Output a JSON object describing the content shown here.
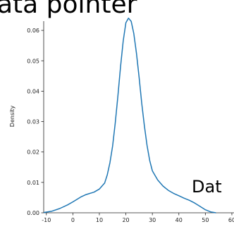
{
  "header_text": "ata pointer",
  "side_text": "Dat",
  "chart_data": {
    "type": "line",
    "ylabel": "Density",
    "color": "#1f77b4",
    "x": [
      -11,
      -8,
      -5,
      -2,
      0,
      3,
      5,
      8,
      10,
      12,
      13,
      14,
      15,
      16,
      17,
      18,
      19,
      20,
      21,
      22,
      23,
      24,
      25,
      26,
      27,
      28,
      29,
      30,
      32,
      34,
      36,
      38,
      40,
      42,
      44,
      46,
      48,
      50,
      52,
      54
    ],
    "values": [
      0.0001,
      0.0005,
      0.0014,
      0.0026,
      0.0036,
      0.0052,
      0.006,
      0.0068,
      0.0078,
      0.0098,
      0.0125,
      0.0165,
      0.022,
      0.0295,
      0.0385,
      0.048,
      0.0565,
      0.0625,
      0.064,
      0.063,
      0.059,
      0.0525,
      0.0445,
      0.036,
      0.0285,
      0.0222,
      0.0172,
      0.0138,
      0.0108,
      0.0088,
      0.0074,
      0.0064,
      0.0056,
      0.0048,
      0.0041,
      0.0032,
      0.0021,
      0.001,
      0.0003,
      0.0
    ],
    "xlim": [
      -11,
      61
    ],
    "ylim": [
      0,
      0.0635
    ],
    "xticks": [
      -10,
      0,
      10,
      20,
      30,
      40,
      50,
      60
    ],
    "yticks": [
      {
        "value": 0,
        "label": "0.00"
      },
      {
        "value": 0.01,
        "label": "0.01"
      },
      {
        "value": 0.02,
        "label": "0.02"
      },
      {
        "value": 0.03,
        "label": "0.03"
      },
      {
        "value": 0.04,
        "label": "0.04"
      },
      {
        "value": 0.05,
        "label": "0.05"
      },
      {
        "value": 0.06,
        "label": "0.06"
      }
    ]
  }
}
